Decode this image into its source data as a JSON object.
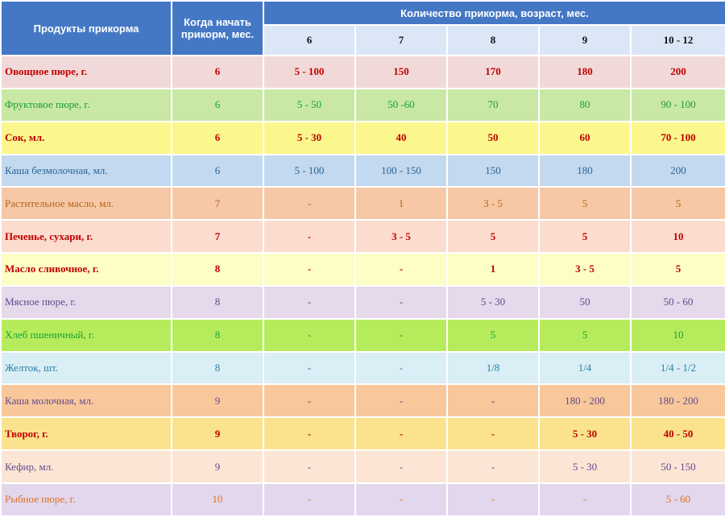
{
  "header": {
    "products": "Продукты прикорма",
    "start": "Когда начать прикорм, мес.",
    "amount": "Количество прикорма, возраст, мес.",
    "ages": [
      "6",
      "7",
      "8",
      "9",
      "10 - 12"
    ]
  },
  "rows": [
    {
      "name": "Овощное пюре, г.",
      "start": "6",
      "values": [
        "5 - 100",
        "150",
        "170",
        "180",
        "200"
      ],
      "bg": "#f2d9d9",
      "color": "#c00000",
      "bold": true
    },
    {
      "name": "Фруктовое пюре, г.",
      "start": "6",
      "values": [
        "5 - 50",
        "50 -60",
        "70",
        "80",
        "90 - 100"
      ],
      "bg": "#c9e8a6",
      "color": "#1aa033",
      "bold": false
    },
    {
      "name": "Сок, мл.",
      "start": "6",
      "values": [
        "5 - 30",
        "40",
        "50",
        "60",
        "70 - 100"
      ],
      "bg": "#fbf78c",
      "color": "#c00000",
      "bold": true
    },
    {
      "name": "Каша безмолочная, мл.",
      "start": "6",
      "values": [
        "5 - 100",
        "100 - 150",
        "150",
        "180",
        "200"
      ],
      "bg": "#c3d9ef",
      "color": "#2a6496",
      "bold": false
    },
    {
      "name": "Растительное масло, мл.",
      "start": "7",
      "values": [
        "-",
        "1",
        "3 - 5",
        "5",
        "5"
      ],
      "bg": "#f6c8a6",
      "color": "#b5651d",
      "bold": false
    },
    {
      "name": "Печенье, сухари, г.",
      "start": "7",
      "values": [
        "-",
        "3 - 5",
        "5",
        "5",
        "10"
      ],
      "bg": "#fcdcce",
      "color": "#c00000",
      "bold": true
    },
    {
      "name": "Масло сливочное, г.",
      "start": "8",
      "values": [
        "-",
        "-",
        "1",
        "3 - 5",
        "5"
      ],
      "bg": "#fdfdc6",
      "color": "#c00000",
      "bold": true
    },
    {
      "name": "Мясное пюре, г.",
      "start": "8",
      "values": [
        "-",
        "-",
        "5 - 30",
        "50",
        "50 - 60"
      ],
      "bg": "#e5d9eb",
      "color": "#5f4b8b",
      "bold": false
    },
    {
      "name": "Хлеб пшеничный, г.",
      "start": "8",
      "values": [
        "-",
        "-",
        "5",
        "5",
        "10"
      ],
      "bg": "#b6ec5c",
      "color": "#1aa033",
      "bold": false
    },
    {
      "name": "Желток, шт.",
      "start": "8",
      "values": [
        "-",
        "-",
        "1/8",
        "1/4",
        "1/4 - 1/2"
      ],
      "bg": "#d9eef5",
      "color": "#2c7fa3",
      "bold": false
    },
    {
      "name": "Каша молочная, мл.",
      "start": "9",
      "values": [
        "-",
        "-",
        "-",
        "180 - 200",
        "180 - 200"
      ],
      "bg": "#f8c79b",
      "color": "#5f4b8b",
      "bold": false
    },
    {
      "name": "Творог, г.",
      "start": "9",
      "values": [
        "-",
        "-",
        "-",
        "5 - 30",
        "40 - 50"
      ],
      "bg": "#fbe38e",
      "color": "#c00000",
      "bold": true
    },
    {
      "name": "Кефир, мл.",
      "start": "9",
      "values": [
        "-",
        "-",
        "-",
        "5 - 30",
        "50 - 150"
      ],
      "bg": "#fde5d6",
      "color": "#5f4b8b",
      "bold": false
    },
    {
      "name": "Рыбное пюре, г.",
      "start": "10",
      "values": [
        "-",
        "-",
        "-",
        "-",
        "5 - 60"
      ],
      "bg": "#e2d7ec",
      "color": "#e07020",
      "bold": false
    }
  ]
}
